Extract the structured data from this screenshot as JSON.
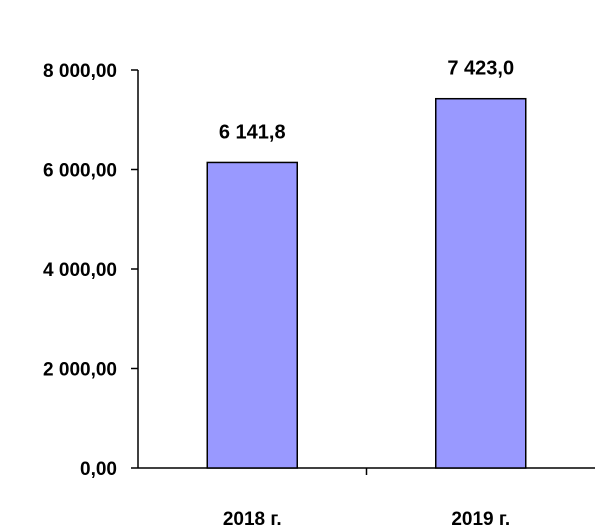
{
  "chart_data": {
    "type": "bar",
    "categories": [
      "2018 г.",
      "2019 г."
    ],
    "values": [
      6141.8,
      7423.0
    ],
    "value_labels": [
      "6 141,8",
      "7 423,0"
    ],
    "ylim": [
      0,
      8000
    ],
    "yticks": [
      0,
      2000,
      4000,
      6000,
      8000
    ],
    "ytick_labels": [
      "0,00",
      "2 000,00",
      "4 000,00",
      "6 000,00",
      "8 000,00"
    ],
    "grid": false,
    "legend": "none",
    "colors": {
      "bar_fill": "#9999ff",
      "bar_stroke": "#000000",
      "axis": "#000000"
    }
  }
}
